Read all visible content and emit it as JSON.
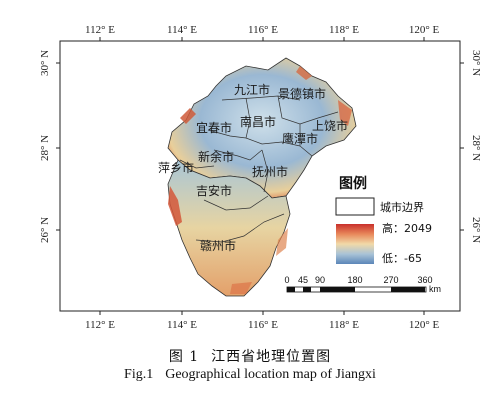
{
  "map": {
    "lon_ticks": [
      "112° E",
      "114° E",
      "116° E",
      "118° E",
      "120° E"
    ],
    "lat_ticks": [
      "30° N",
      "28° N",
      "26° N"
    ],
    "cities": [
      {
        "id": "jiujiang",
        "label": "九江市"
      },
      {
        "id": "jingdezhen",
        "label": "景德镇市"
      },
      {
        "id": "nanchang",
        "label": "南昌市"
      },
      {
        "id": "shangrao",
        "label": "上饶市"
      },
      {
        "id": "yichun",
        "label": "宜春市"
      },
      {
        "id": "yingtan",
        "label": "鹰潭市"
      },
      {
        "id": "xinyu",
        "label": "新余市"
      },
      {
        "id": "pingxiang",
        "label": "萍乡市"
      },
      {
        "id": "fuzhou",
        "label": "抚州市"
      },
      {
        "id": "jian",
        "label": "吉安市"
      },
      {
        "id": "ganzhou",
        "label": "赣州市"
      }
    ]
  },
  "legend": {
    "title": "图例",
    "boundary_label": "城市边界",
    "high_label": "高：2049",
    "low_label": "低：-65",
    "ramp_colors": [
      "#c9302c",
      "#e8875a",
      "#f1d9a8",
      "#a9c3d6",
      "#5b86b8"
    ]
  },
  "scale_bar": {
    "labels": [
      "0",
      "45",
      "90",
      "180",
      "270",
      "360"
    ],
    "unit": "km"
  },
  "caption": {
    "cn_number": "图 1",
    "cn_title": "江西省地理位置图",
    "en_number": "Fig.1",
    "en_title": "Geographical location map of Jiangxi"
  }
}
